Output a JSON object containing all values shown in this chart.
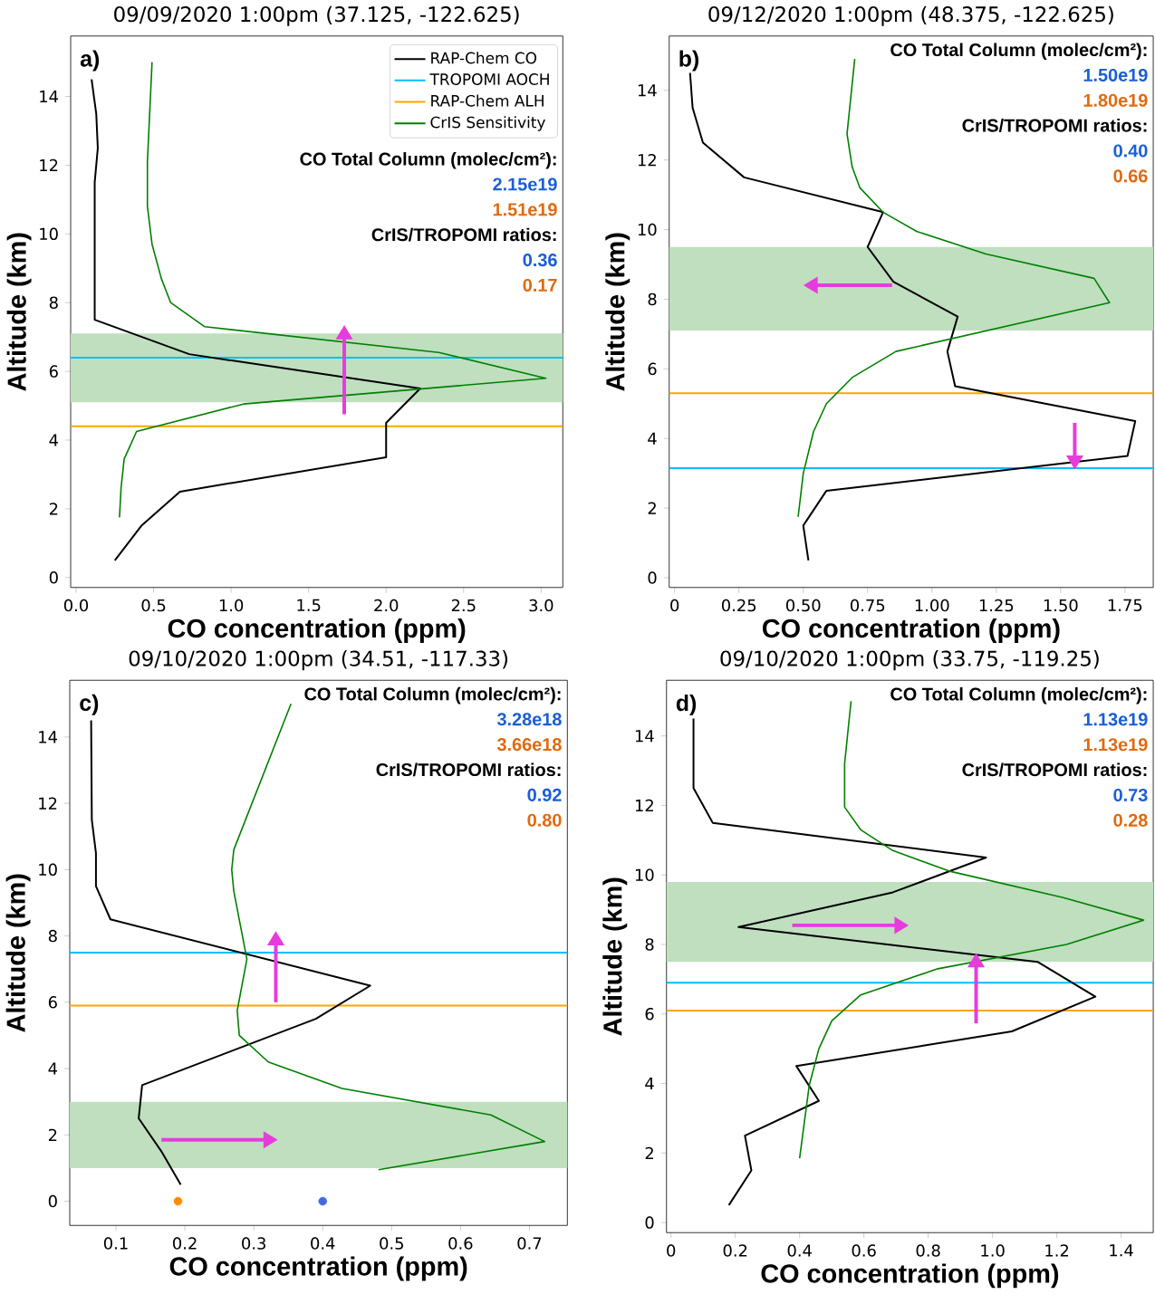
{
  "chart_data": [
    {
      "type": "line",
      "title": "09/09/2020 1:00pm (37.125, -122.625)",
      "xlabel": "CO concentration (ppm)",
      "ylabel": "Altitude (km)",
      "xlim": [
        -0.035,
        3.14
      ],
      "ylim": [
        -0.29,
        15.76
      ],
      "xticks": [
        {
          "value": 0,
          "label": "0.0"
        },
        0.5,
        {
          "value": 1,
          "label": "1.0"
        },
        1.5,
        {
          "value": 2,
          "label": "2.0"
        },
        2.5,
        {
          "value": 3,
          "label": "3.0"
        }
      ],
      "yticks": [
        0,
        2,
        4,
        6,
        8,
        10,
        12,
        14
      ],
      "legend": "top right",
      "series": [
        {
          "name": "RAP-Chem CO",
          "color": "#000000",
          "x": [
            0.1,
            0.13,
            0.14,
            0.12,
            0.12,
            0.73,
            2.22,
            2.0,
            2.0,
            0.67,
            0.42,
            0.25
          ],
          "values": [
            14.5,
            13.5,
            12.5,
            11.5,
            7.5,
            6.5,
            5.5,
            4.5,
            3.5,
            2.5,
            1.5,
            0.5
          ]
        },
        {
          "name": "CrIS Sensitivity",
          "color": "#008000",
          "x": [
            0.49,
            0.46,
            0.46,
            0.49,
            0.55,
            0.61,
            0.83,
            2.34,
            3.03,
            1.08,
            0.39,
            0.31,
            0.29,
            0.28
          ],
          "values": [
            15,
            12.1,
            10.8,
            9.7,
            8.7,
            8.0,
            7.3,
            6.55,
            5.8,
            5.05,
            4.25,
            3.45,
            2.6,
            1.75
          ]
        }
      ],
      "ref_lines": [
        {
          "axis": "y",
          "value": 6.4,
          "label": "TROPOMI AOCH",
          "color": "#00bfff"
        },
        {
          "axis": "y",
          "value": 4.4,
          "label": "RAP-Chem ALH",
          "color": "#ffa500"
        }
      ],
      "bands": [
        {
          "axis": "y",
          "from": 5.1,
          "to": 7.1,
          "color": "#bfdfbf"
        }
      ],
      "annotations": [
        "a)",
        "CO Total Column (molec/cm²):",
        "2.15e19",
        "1.51e19",
        "CrIS/TROPOMI ratios:",
        "0.36",
        "0.17"
      ]
    },
    {
      "type": "line",
      "title": "09/12/2020 1:00pm (48.375, -122.625)",
      "xlabel": "CO concentration (ppm)",
      "ylabel": "Altitude (km)",
      "xlim": [
        -0.021,
        1.86
      ],
      "ylim": [
        -0.28,
        15.56
      ],
      "xticks": [
        0,
        0.25,
        {
          "value": 0.5,
          "label": "0.50"
        },
        0.75,
        {
          "value": 1,
          "label": "1.00"
        },
        1.25,
        {
          "value": 1.5,
          "label": "1.50"
        },
        1.75
      ],
      "yticks": [
        0,
        2,
        4,
        6,
        8,
        10,
        12,
        14
      ],
      "series": [
        {
          "color": "#000000",
          "x": [
            0.06,
            0.07,
            0.11,
            0.27,
            0.81,
            0.75,
            0.85,
            1.1,
            1.06,
            1.09,
            1.79,
            1.76,
            0.59,
            0.5,
            0.52
          ],
          "values": [
            14.5,
            13.5,
            12.5,
            11.5,
            10.5,
            9.5,
            8.5,
            7.5,
            6.5,
            5.5,
            4.5,
            3.5,
            2.5,
            1.5,
            0.5
          ]
        },
        {
          "color": "#008000",
          "x": [
            0.7,
            0.67,
            0.69,
            0.72,
            0.81,
            0.94,
            1.21,
            1.63,
            1.69,
            0.86,
            0.69,
            0.59,
            0.54,
            0.5,
            0.48
          ],
          "values": [
            14.9,
            12.75,
            11.8,
            11.2,
            10.5,
            9.95,
            9.3,
            8.6,
            7.9,
            6.5,
            5.75,
            5.0,
            4.2,
            3.0,
            1.75
          ]
        }
      ],
      "ref_lines": [
        {
          "axis": "y",
          "value": 3.15,
          "color": "#00bfff"
        },
        {
          "axis": "y",
          "value": 5.3,
          "color": "#ffa500"
        }
      ],
      "bands": [
        {
          "axis": "y",
          "from": 7.1,
          "to": 9.5,
          "color": "#bfdfbf"
        }
      ],
      "annotations": [
        "b)",
        "CO Total Column (molec/cm²):",
        "1.50e19",
        "1.80e19",
        "CrIS/TROPOMI ratios:",
        "0.40",
        "0.66"
      ]
    },
    {
      "type": "line",
      "title": "09/10/2020 1:00pm (34.51, -117.33)",
      "xlabel": "CO concentration (ppm)",
      "ylabel": "Altitude (km)",
      "xlim": [
        0.033,
        0.755
      ],
      "ylim": [
        -0.73,
        15.71
      ],
      "xticks": [
        0.1,
        0.2,
        0.3,
        0.4,
        0.5,
        0.6,
        0.7
      ],
      "yticks": [
        0,
        2,
        4,
        6,
        8,
        10,
        12,
        14
      ],
      "series": [
        {
          "color": "#000000",
          "x": [
            0.064,
            0.065,
            0.071,
            0.071,
            0.092,
            0.469,
            0.39,
            0.138,
            0.133,
            0.166,
            0.194
          ],
          "values": [
            14.5,
            11.5,
            10.5,
            9.5,
            8.5,
            6.5,
            5.5,
            3.5,
            2.5,
            1.5,
            0.5
          ]
        },
        {
          "color": "#008000",
          "x": [
            0.354,
            0.271,
            0.268,
            0.271,
            0.29,
            0.276,
            0.279,
            0.321,
            0.428,
            0.644,
            0.722,
            0.481
          ],
          "values": [
            15,
            10.6,
            10,
            9.35,
            7.3,
            5.75,
            5.0,
            4.2,
            3.4,
            2.6,
            1.8,
            0.95
          ]
        },
        {
          "type": "scatter",
          "color": "#ff8c00",
          "x": [
            0.19
          ],
          "values": [
            0
          ]
        },
        {
          "type": "scatter",
          "color": "#4169e1",
          "x": [
            0.4
          ],
          "values": [
            0
          ]
        }
      ],
      "ref_lines": [
        {
          "axis": "y",
          "value": 7.5,
          "color": "#00bfff"
        },
        {
          "axis": "y",
          "value": 5.9,
          "color": "#ffa500"
        }
      ],
      "bands": [
        {
          "axis": "y",
          "from": 1.0,
          "to": 3.0,
          "color": "#bfdfbf"
        }
      ],
      "annotations": [
        "c)",
        "CO Total Column (molec/cm²):",
        "3.28e18",
        "3.66e18",
        "CrIS/TROPOMI ratios:",
        "0.92",
        "0.80"
      ]
    },
    {
      "type": "line",
      "title": "09/10/2020 1:00pm (33.75, -119.25)",
      "xlabel": "CO concentration (ppm)",
      "ylabel": "Altitude (km)",
      "xlim": [
        -0.014,
        1.5
      ],
      "ylim": [
        -0.29,
        15.6
      ],
      "xticks": [
        0,
        0.2,
        0.4,
        0.6,
        0.8,
        {
          "value": 1,
          "label": "1.0"
        },
        1.2,
        1.4
      ],
      "yticks": [
        0,
        2,
        4,
        6,
        8,
        10,
        12,
        14
      ],
      "series": [
        {
          "color": "#000000",
          "x": [
            0.07,
            0.07,
            0.13,
            0.98,
            0.69,
            0.21,
            1.14,
            1.32,
            1.06,
            0.39,
            0.46,
            0.23,
            0.25,
            0.18
          ],
          "values": [
            14.5,
            12.5,
            11.5,
            10.5,
            9.5,
            8.5,
            7.5,
            6.5,
            5.5,
            4.5,
            3.5,
            2.5,
            1.5,
            0.5
          ]
        },
        {
          "color": "#008000",
          "x": [
            0.56,
            0.54,
            0.54,
            0.59,
            0.69,
            0.87,
            1.22,
            1.47,
            1.23,
            0.83,
            0.59,
            0.5,
            0.46,
            0.43,
            0.4
          ],
          "values": [
            15,
            13.2,
            11.95,
            11.3,
            10.7,
            10.1,
            9.35,
            8.7,
            8.0,
            7.3,
            6.55,
            5.8,
            5.0,
            3.95,
            1.85
          ]
        }
      ],
      "ref_lines": [
        {
          "axis": "y",
          "value": 6.9,
          "color": "#00bfff"
        },
        {
          "axis": "y",
          "value": 6.1,
          "color": "#ffa500"
        }
      ],
      "bands": [
        {
          "axis": "y",
          "from": 7.5,
          "to": 9.8,
          "color": "#bfdfbf"
        }
      ],
      "annotations": [
        "d)",
        "CO Total Column (molec/cm²):",
        "1.13e19",
        "1.13e19",
        "CrIS/TROPOMI ratios:",
        "0.73",
        "0.28"
      ]
    }
  ]
}
